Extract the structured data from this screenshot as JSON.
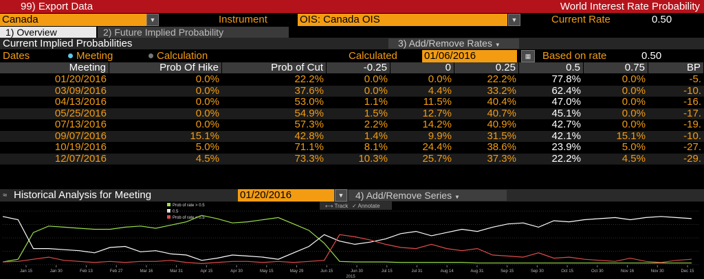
{
  "titlebar": {
    "left": "99) Export Data",
    "right": "World Interest Rate Probability"
  },
  "instrument_row": {
    "country": "Canada",
    "instrument_label": "Instrument",
    "instrument_value": "OIS: Canada OIS",
    "current_rate_label": "Current Rate",
    "current_rate_value": "0.50"
  },
  "tabs": [
    {
      "label": "1) Overview"
    },
    {
      "label": "2) Future Implied Probability"
    }
  ],
  "section": {
    "title": "Current Implied Probabilities",
    "add_remove": "3) Add/Remove Rates"
  },
  "dates": {
    "label": "Dates",
    "opt_meeting": "Meeting",
    "opt_calculation": "Calculation",
    "calculated_label": "Calculated",
    "calculated_value": "01/06/2016",
    "based_label": "Based on rate",
    "based_value": "0.50"
  },
  "table": {
    "headers": [
      "Meeting",
      "Prob Of Hike",
      "Prob of Cut",
      "-0.25",
      "0",
      "0.25",
      "0.5",
      "0.75",
      "BP"
    ],
    "rows": [
      [
        "01/20/2016",
        "0.0%",
        "22.2%",
        "0.0%",
        "0.0%",
        "22.2%",
        "77.8%",
        "0.0%",
        "-5."
      ],
      [
        "03/09/2016",
        "0.0%",
        "37.6%",
        "0.0%",
        "4.4%",
        "33.2%",
        "62.4%",
        "0.0%",
        "-10."
      ],
      [
        "04/13/2016",
        "0.0%",
        "53.0%",
        "1.1%",
        "11.5%",
        "40.4%",
        "47.0%",
        "0.0%",
        "-16."
      ],
      [
        "05/25/2016",
        "0.0%",
        "54.9%",
        "1.5%",
        "12.7%",
        "40.7%",
        "45.1%",
        "0.0%",
        "-17."
      ],
      [
        "07/13/2016",
        "0.0%",
        "57.3%",
        "2.2%",
        "14.2%",
        "40.9%",
        "42.7%",
        "0.0%",
        "-19."
      ],
      [
        "09/07/2016",
        "15.1%",
        "42.8%",
        "1.4%",
        "9.9%",
        "31.5%",
        "42.1%",
        "15.1%",
        "-10."
      ],
      [
        "10/19/2016",
        "5.0%",
        "71.1%",
        "8.1%",
        "24.4%",
        "38.6%",
        "23.9%",
        "5.0%",
        "-27."
      ],
      [
        "12/07/2016",
        "4.5%",
        "73.3%",
        "10.3%",
        "25.7%",
        "37.3%",
        "22.2%",
        "4.5%",
        "-29."
      ]
    ]
  },
  "historical": {
    "title": "Historical Analysis for Meeting",
    "meeting_value": "01/20/2016",
    "add_remove": "4) Add/Remove Series",
    "track": "Track",
    "annotate": "Annotate"
  },
  "chart_data": {
    "type": "line",
    "xlabels": [
      "Jan 15",
      "Jan 30",
      "Feb 13",
      "Feb 27",
      "Mar 16",
      "Mar 31",
      "Apr 15",
      "Apr 30",
      "May 15",
      "May 29",
      "Jun 15",
      "Jun 30",
      "Jul 15",
      "Jul 31",
      "Aug 14",
      "Aug 31",
      "Sep 15",
      "Sep 30",
      "Oct 15",
      "Oct 30",
      "Nov 16",
      "Nov 30",
      "Dec 15"
    ],
    "year_label": "2015",
    "series": [
      {
        "name": "Prob of rate > 0.5",
        "color": "#9be04a",
        "values": [
          5,
          10,
          60,
          72,
          70,
          68,
          66,
          66,
          70,
          72,
          68,
          74,
          80,
          92,
          86,
          78,
          80,
          84,
          88,
          76,
          64,
          40,
          6,
          5,
          5,
          5,
          4,
          4,
          4,
          4,
          4,
          3,
          3,
          3,
          3,
          3,
          3,
          3,
          3,
          3,
          3,
          3,
          3,
          3,
          3,
          3
        ]
      },
      {
        "name": "0.5",
        "color": "#ffffff",
        "values": [
          90,
          84,
          30,
          30,
          28,
          26,
          22,
          32,
          34,
          24,
          26,
          20,
          18,
          8,
          12,
          18,
          16,
          14,
          10,
          22,
          34,
          56,
          44,
          38,
          42,
          48,
          58,
          62,
          54,
          60,
          66,
          62,
          70,
          76,
          78,
          70,
          82,
          80,
          84,
          86,
          88,
          84,
          88,
          90,
          88,
          86
        ]
      },
      {
        "name": "Prob of rate < 0.5",
        "color": "#e04c4c",
        "values": [
          5,
          6,
          10,
          14,
          8,
          6,
          4,
          6,
          4,
          6,
          6,
          8,
          4,
          2,
          4,
          6,
          6,
          4,
          6,
          4,
          6,
          8,
          56,
          52,
          46,
          38,
          32,
          30,
          38,
          30,
          26,
          30,
          18,
          16,
          14,
          22,
          12,
          14,
          10,
          8,
          6,
          12,
          6,
          4,
          8,
          10
        ]
      }
    ]
  },
  "colors": {
    "accent": "#f39c12",
    "titlebar": "#b5131b",
    "header_bg": "#3b3b3b",
    "row_alt": "#1c1c1c"
  }
}
